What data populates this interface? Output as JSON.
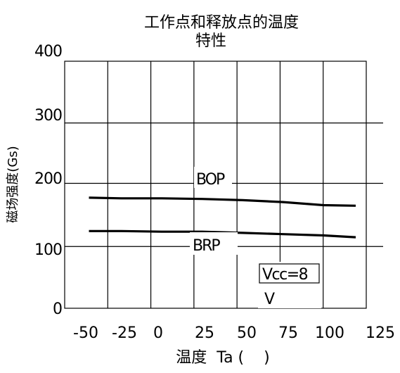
{
  "chart_data": {
    "type": "line",
    "title": "工作点和释放点的温度",
    "subtitle": "特性",
    "xlabel": "温度  Ta (    )",
    "ylabel": "磁场强度(Gs)",
    "x_ticks": [
      "-50",
      "-25",
      "0",
      "25",
      "50",
      "75",
      "100",
      "125"
    ],
    "y_ticks": [
      "0",
      "100",
      "200",
      "300",
      "400"
    ],
    "xlim": [
      -50,
      125
    ],
    "ylim": [
      0,
      400
    ],
    "grid": true,
    "series": [
      {
        "name": "BOP",
        "x": [
          -45,
          -25,
          0,
          25,
          50,
          75,
          100,
          120
        ],
        "values": [
          179,
          178,
          178,
          177,
          175,
          172,
          167,
          166
        ]
      },
      {
        "name": "BRP",
        "x": [
          -45,
          -25,
          0,
          25,
          50,
          75,
          100,
          120
        ],
        "values": [
          125,
          125,
          124,
          124,
          122,
          120,
          118,
          115
        ]
      }
    ],
    "annotation": {
      "line1": "Vcc=8",
      "line2": "V"
    }
  }
}
